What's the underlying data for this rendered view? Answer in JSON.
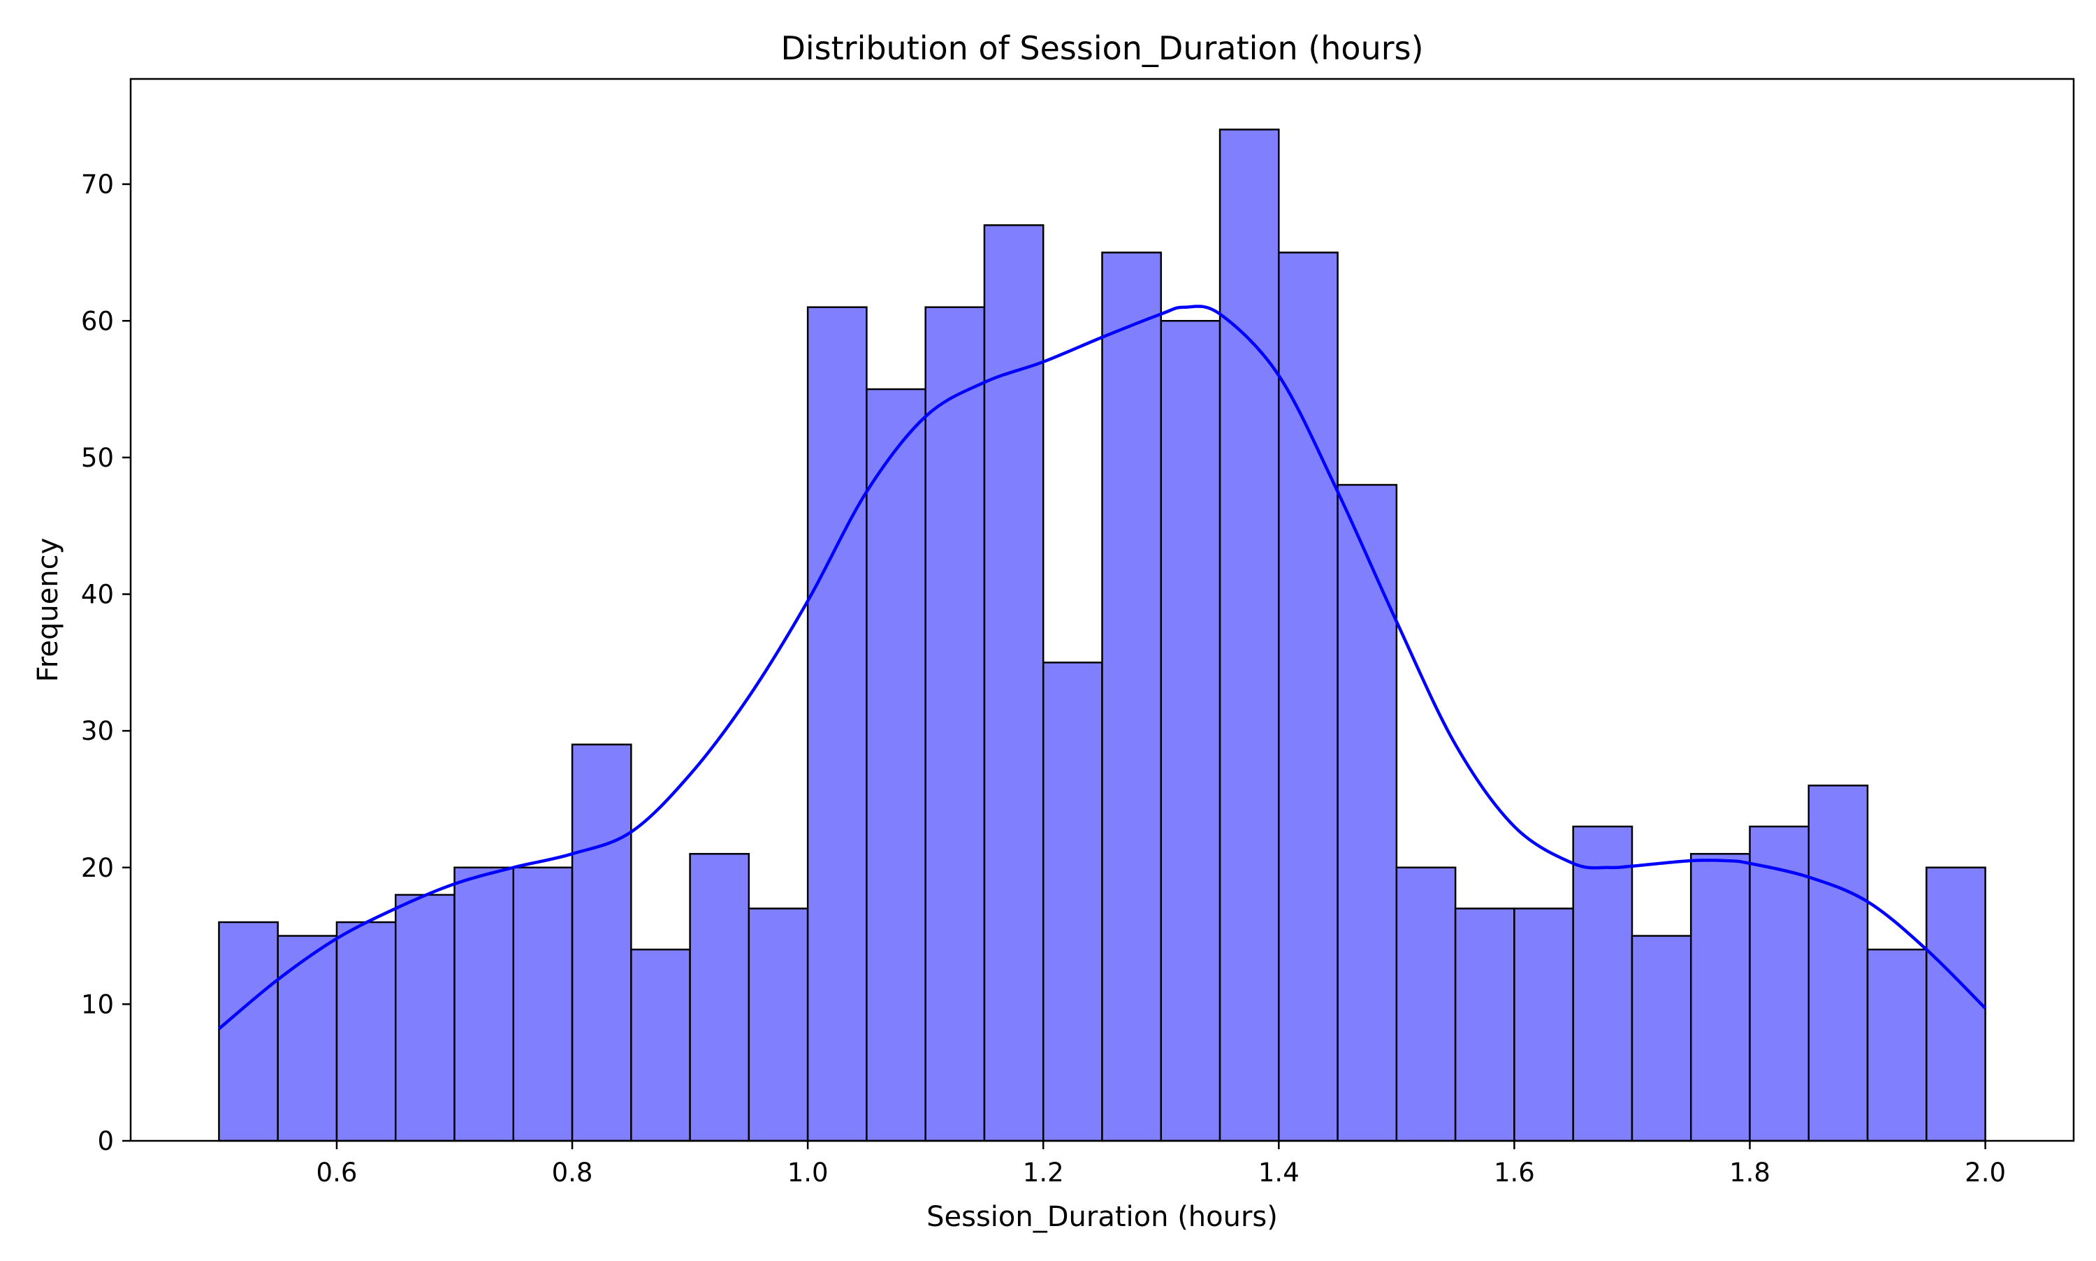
{
  "chart_data": {
    "type": "bar",
    "subtype": "histogram",
    "title": "Distribution of Session_Duration (hours)",
    "xlabel": "Session_Duration (hours)",
    "ylabel": "Frequency",
    "xlim": [
      0.425,
      2.075
    ],
    "ylim": [
      0,
      77.7
    ],
    "xticks": [
      0.6,
      0.8,
      1.0,
      1.2,
      1.4,
      1.6,
      1.8,
      2.0
    ],
    "xtick_labels": [
      "0.6",
      "0.8",
      "1.0",
      "1.2",
      "1.4",
      "1.6",
      "1.8",
      "2.0"
    ],
    "yticks": [
      0,
      10,
      20,
      30,
      40,
      50,
      60,
      70
    ],
    "ytick_labels": [
      "0",
      "10",
      "20",
      "30",
      "40",
      "50",
      "60",
      "70"
    ],
    "grid": false,
    "bin_edges": [
      0.5,
      0.55,
      0.6,
      0.65,
      0.7,
      0.75,
      0.8,
      0.85,
      0.9,
      0.95,
      1.0,
      1.05,
      1.1,
      1.15,
      1.2,
      1.25,
      1.3,
      1.35,
      1.4,
      1.45,
      1.5,
      1.55,
      1.6,
      1.65,
      1.7,
      1.75,
      1.8,
      1.85,
      1.9,
      1.95,
      2.0
    ],
    "values": [
      16,
      15,
      16,
      18,
      20,
      20,
      29,
      14,
      21,
      17,
      61,
      55,
      61,
      67,
      35,
      65,
      60,
      74,
      65,
      48,
      20,
      17,
      17,
      23,
      15,
      21,
      23,
      26,
      14,
      20
    ],
    "bar_color": "#8080ff",
    "bar_edge_color": "#000000",
    "kde": {
      "color": "#0000ff",
      "x": [
        0.5,
        0.55,
        0.6,
        0.65,
        0.7,
        0.75,
        0.8,
        0.85,
        0.9,
        0.95,
        1.0,
        1.05,
        1.1,
        1.15,
        1.2,
        1.25,
        1.3,
        1.32,
        1.35,
        1.4,
        1.45,
        1.5,
        1.55,
        1.6,
        1.65,
        1.68,
        1.7,
        1.75,
        1.78,
        1.8,
        1.85,
        1.9,
        1.95,
        2.0
      ],
      "y": [
        8.2,
        11.8,
        14.8,
        17.0,
        18.8,
        20.0,
        21.0,
        22.6,
        26.8,
        32.5,
        39.5,
        47.5,
        53.0,
        55.5,
        57.0,
        58.8,
        60.5,
        61.0,
        60.5,
        56.0,
        47.5,
        38.0,
        29.0,
        23.0,
        20.3,
        20.0,
        20.1,
        20.5,
        20.5,
        20.3,
        19.3,
        17.5,
        14.0,
        9.7
      ]
    }
  }
}
